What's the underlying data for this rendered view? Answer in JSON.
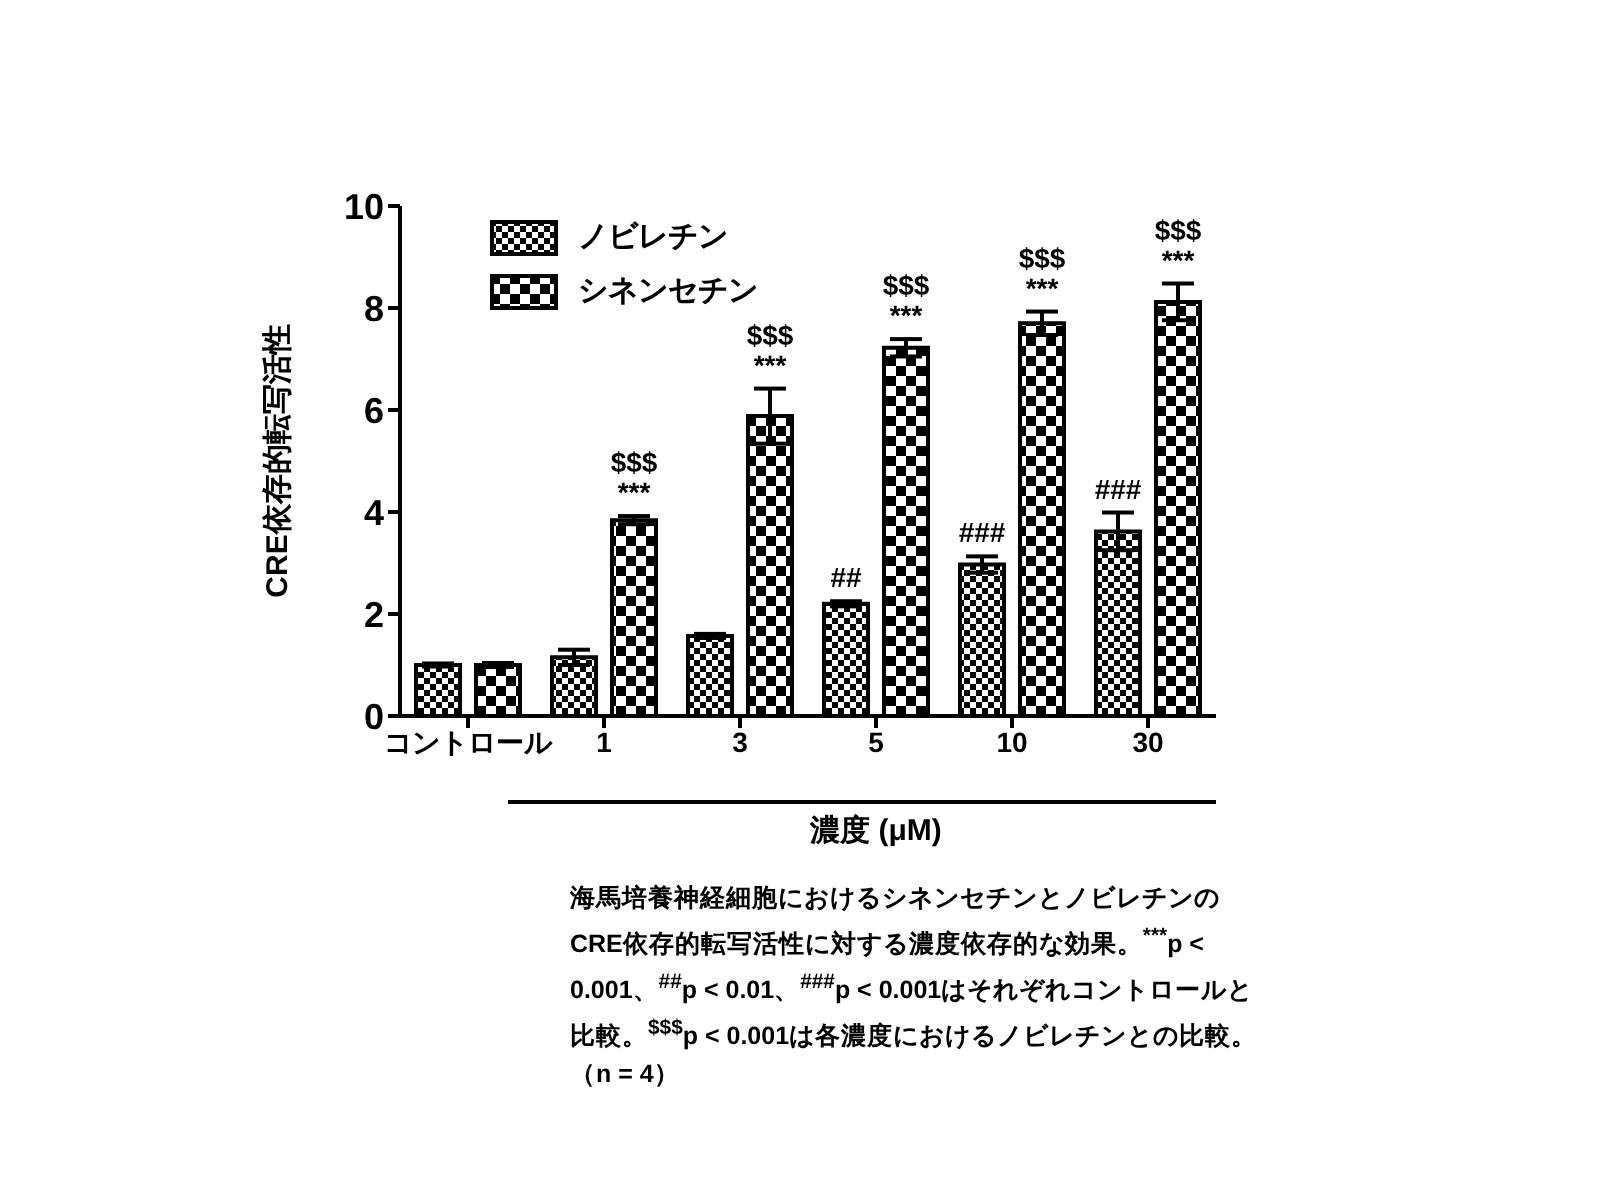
{
  "chart_data": {
    "type": "bar",
    "ylabel": "CRE依存的転写活性",
    "xlabel": "濃度 (μM)",
    "categories": [
      "コントロール",
      "1",
      "3",
      "5",
      "10",
      "30"
    ],
    "series": [
      {
        "name": "ノビレチン",
        "color": "#000000",
        "values": [
          1.0,
          1.15,
          1.57,
          2.2,
          2.97,
          3.62
        ],
        "errors": [
          0.03,
          0.15,
          0.04,
          0.05,
          0.16,
          0.37
        ]
      },
      {
        "name": "シネンセチン",
        "color": "#000000",
        "values": [
          1.0,
          3.84,
          5.88,
          7.22,
          7.7,
          8.12
        ],
        "errors": [
          0.04,
          0.08,
          0.54,
          0.17,
          0.23,
          0.36
        ]
      }
    ],
    "ylim": [
      0,
      10
    ],
    "yticks": [
      0,
      2,
      4,
      6,
      8,
      10
    ],
    "grid": false,
    "legend": "top left",
    "annotations": [
      {
        "text": "***",
        "x": "1",
        "y": 3.84
      },
      {
        "text": "$$$",
        "x": "1",
        "y": 3.84
      },
      {
        "text": "***",
        "x": "3",
        "y": 5.88
      },
      {
        "text": "$$$",
        "x": "3",
        "y": 5.88
      },
      {
        "text": "##",
        "x": "5",
        "y": 2.2
      },
      {
        "text": "***",
        "x": "5",
        "y": 7.22
      },
      {
        "text": "$$$",
        "x": "5",
        "y": 7.22
      },
      {
        "text": "###",
        "x": "10",
        "y": 2.97
      },
      {
        "text": "***",
        "x": "10",
        "y": 7.7
      },
      {
        "text": "$$$",
        "x": "10",
        "y": 7.7
      },
      {
        "text": "###",
        "x": "30",
        "y": 3.62
      },
      {
        "text": "***",
        "x": "30",
        "y": 8.12
      },
      {
        "text": "$$$",
        "x": "30",
        "y": 8.12
      },
      "海馬培養神経細胞におけるシネンセチンとノビレチンのCRE依存的転写活性に対する濃度依存的な効果。$^{***}$p < 0.001、$^{##}$p < 0.01、$^{###}$p < 0.001はそれぞれコントロールと比較。$^{$$$}$p < 0.001は各濃度におけるノビレチンとの比較。（n = 4）"
    ]
  }
}
